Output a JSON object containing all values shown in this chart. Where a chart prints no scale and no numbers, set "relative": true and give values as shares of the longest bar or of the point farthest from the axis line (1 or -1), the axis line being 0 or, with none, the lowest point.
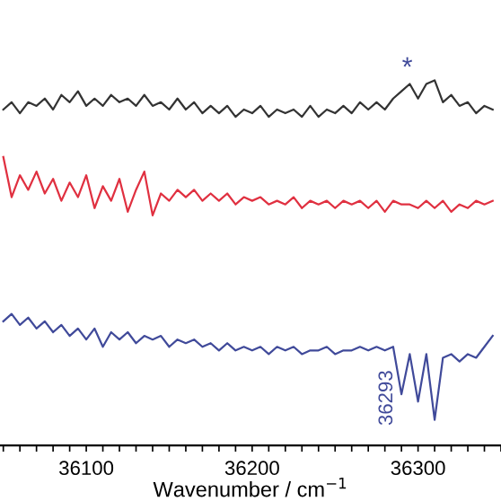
{
  "chart_data": {
    "type": "line",
    "relative": true,
    "xlabel": "Wavenumber / cm$^{−1}$",
    "x": [
      36050,
      36055,
      36060,
      36065,
      36070,
      36075,
      36080,
      36085,
      36090,
      36095,
      36100,
      36105,
      36110,
      36115,
      36120,
      36125,
      36130,
      36135,
      36140,
      36145,
      36150,
      36155,
      36160,
      36165,
      36170,
      36175,
      36180,
      36185,
      36190,
      36195,
      36200,
      36205,
      36210,
      36215,
      36220,
      36225,
      36230,
      36235,
      36240,
      36245,
      36250,
      36255,
      36260,
      36265,
      36270,
      36275,
      36280,
      36285,
      36290,
      36295,
      36300,
      36305,
      36310,
      36315,
      36320,
      36325,
      36330,
      36335,
      36340,
      36345
    ],
    "series": [
      {
        "color": "#333333",
        "values": [
          0.92,
          0.94,
          0.91,
          0.94,
          0.93,
          0.95,
          0.92,
          0.96,
          0.94,
          0.97,
          0.93,
          0.95,
          0.93,
          0.96,
          0.94,
          0.95,
          0.93,
          0.96,
          0.93,
          0.94,
          0.92,
          0.95,
          0.92,
          0.94,
          0.91,
          0.93,
          0.91,
          0.93,
          0.9,
          0.92,
          0.91,
          0.93,
          0.9,
          0.92,
          0.91,
          0.92,
          0.9,
          0.93,
          0.9,
          0.92,
          0.91,
          0.93,
          0.91,
          0.94,
          0.92,
          0.94,
          0.92,
          0.95,
          0.97,
          0.99,
          0.95,
          0.99,
          1.0,
          0.94,
          0.96,
          0.93,
          0.94,
          0.91,
          0.93,
          0.92
        ]
      },
      {
        "color": "#e03040",
        "values": [
          0.79,
          0.68,
          0.74,
          0.7,
          0.75,
          0.69,
          0.73,
          0.67,
          0.72,
          0.68,
          0.74,
          0.65,
          0.71,
          0.67,
          0.73,
          0.64,
          0.7,
          0.75,
          0.63,
          0.69,
          0.67,
          0.7,
          0.68,
          0.7,
          0.67,
          0.69,
          0.67,
          0.69,
          0.66,
          0.68,
          0.67,
          0.68,
          0.66,
          0.67,
          0.66,
          0.68,
          0.65,
          0.67,
          0.66,
          0.67,
          0.65,
          0.67,
          0.66,
          0.67,
          0.65,
          0.67,
          0.64,
          0.67,
          0.66,
          0.66,
          0.65,
          0.67,
          0.65,
          0.67,
          0.64,
          0.66,
          0.65,
          0.67,
          0.66,
          0.67
        ]
      },
      {
        "color": "#404a9a",
        "values": [
          0.34,
          0.36,
          0.33,
          0.35,
          0.32,
          0.34,
          0.31,
          0.33,
          0.3,
          0.32,
          0.29,
          0.32,
          0.27,
          0.31,
          0.29,
          0.31,
          0.28,
          0.3,
          0.29,
          0.3,
          0.27,
          0.29,
          0.28,
          0.29,
          0.27,
          0.28,
          0.26,
          0.28,
          0.26,
          0.27,
          0.26,
          0.27,
          0.25,
          0.27,
          0.26,
          0.27,
          0.25,
          0.26,
          0.26,
          0.27,
          0.25,
          0.26,
          0.26,
          0.27,
          0.26,
          0.27,
          0.26,
          0.27,
          0.14,
          0.25,
          0.12,
          0.25,
          0.07,
          0.24,
          0.25,
          0.23,
          0.25,
          0.24,
          0.27,
          0.3
        ]
      }
    ],
    "annotations": [
      {
        "text": "*",
        "x": 36295,
        "y": 0.99
      },
      {
        "text": "36293",
        "x": 36293,
        "y": 0.13
      }
    ],
    "xlim": [
      36048,
      36350
    ],
    "xticks": [
      {
        "value": 36050,
        "label": null
      },
      {
        "value": 36060,
        "label": null
      },
      {
        "value": 36070,
        "label": null
      },
      {
        "value": 36080,
        "label": null
      },
      {
        "value": 36090,
        "label": null
      },
      36100,
      {
        "value": 36110,
        "label": null
      },
      {
        "value": 36120,
        "label": null
      },
      {
        "value": 36130,
        "label": null
      },
      {
        "value": 36140,
        "label": null
      },
      {
        "value": 36150,
        "label": null
      },
      {
        "value": 36160,
        "label": null
      },
      {
        "value": 36170,
        "label": null
      },
      {
        "value": 36180,
        "label": null
      },
      {
        "value": 36190,
        "label": null
      },
      36200,
      {
        "value": 36210,
        "label": null
      },
      {
        "value": 36220,
        "label": null
      },
      {
        "value": 36230,
        "label": null
      },
      {
        "value": 36240,
        "label": null
      },
      {
        "value": 36250,
        "label": null
      },
      {
        "value": 36260,
        "label": null
      },
      {
        "value": 36270,
        "label": null
      },
      {
        "value": 36280,
        "label": null
      },
      {
        "value": 36290,
        "label": null
      },
      36300,
      {
        "value": 36310,
        "label": null
      },
      {
        "value": 36320,
        "label": null
      },
      {
        "value": 36330,
        "label": null
      },
      {
        "value": 36340,
        "label": null
      },
      {
        "value": 36350,
        "label": null
      }
    ],
    "tick_labels": "x",
    "grid": false,
    "legend": false
  }
}
